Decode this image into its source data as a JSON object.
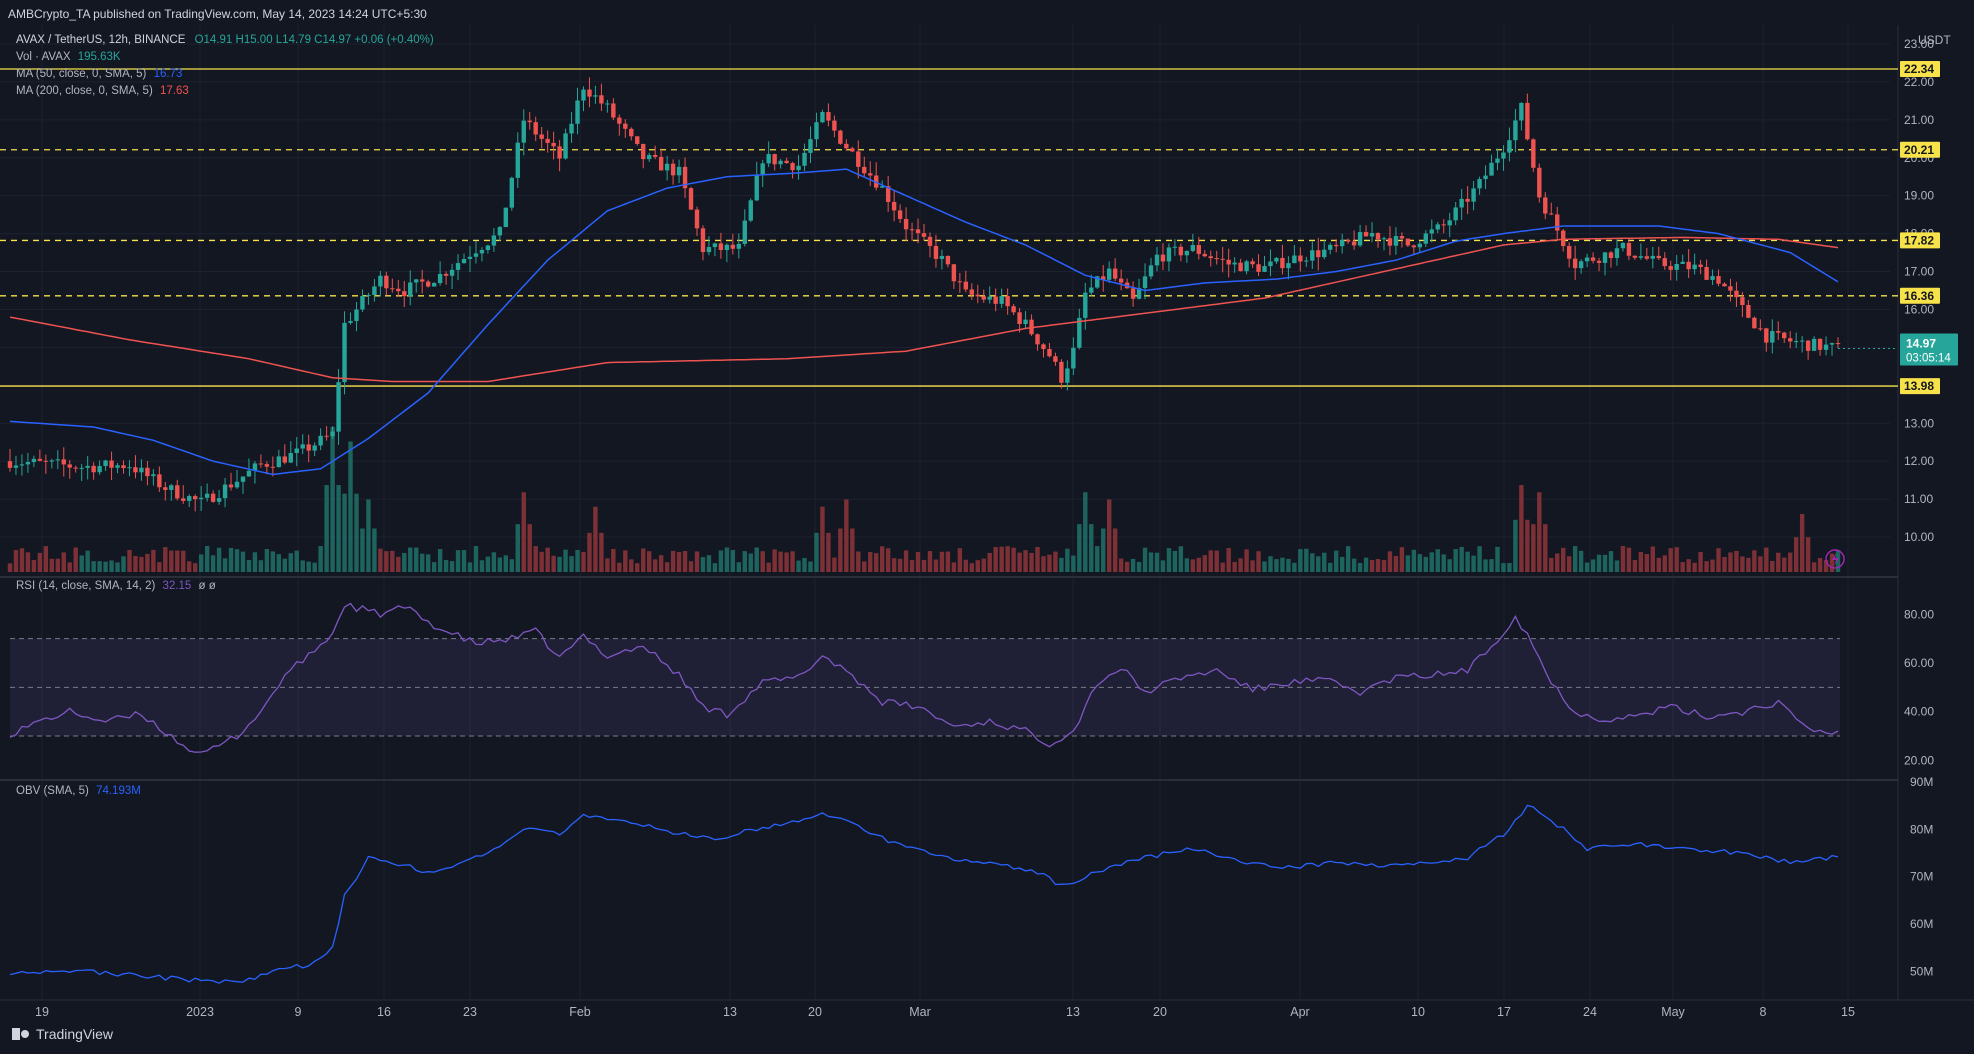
{
  "header": {
    "publisher": "AMBCrypto_TA published on TradingView.com, May 14, 2023 14:24 UTC+5:30"
  },
  "legend": {
    "symbol": "AVAX / TetherUS, 12h, BINANCE",
    "ohlc": "O14.91 H15.00 L14.79 C14.97 +0.06 (+0.40%)",
    "vol_label": "Vol · AVAX",
    "vol_value": "195.63K",
    "ma50_label": "MA (50, close, 0, SMA, 5)",
    "ma50_value": "16.73",
    "ma200_label": "MA (200, close, 0, SMA, 5)",
    "ma200_value": "17.63",
    "rsi_label": "RSI (14, close, SMA, 14, 2)",
    "rsi_value": "32.15",
    "rsi_extra": "ø ø",
    "obv_label": "OBV (SMA, 5)",
    "obv_value": "74.193M"
  },
  "footer": {
    "brand": "TradingView"
  },
  "colors": {
    "bg": "#131722",
    "up": "#26a69a",
    "down": "#ef5350",
    "ma50": "#2962ff",
    "ma200": "#ef5350",
    "rsi": "#7e57c2",
    "obv": "#2962ff",
    "level": "#f7e24a"
  },
  "chart_data": {
    "type": "candlestick",
    "currency": "USDT",
    "price_axis": {
      "ticks": [
        "10.00",
        "11.00",
        "12.00",
        "13.00",
        "14.00",
        "15.00",
        "16.00",
        "17.00",
        "18.00",
        "19.00",
        "20.00",
        "21.00",
        "22.00",
        "23.00"
      ],
      "range": [
        9.5,
        23.5
      ]
    },
    "x_axis": {
      "ticks": [
        "19",
        "2023",
        "9",
        "16",
        "23",
        "Feb",
        "13",
        "20",
        "Mar",
        "13",
        "20",
        "Apr",
        "10",
        "17",
        "24",
        "May",
        "8",
        "15"
      ]
    },
    "horizontal_levels": [
      {
        "value": 22.34,
        "label": "22.34",
        "style": "solid"
      },
      {
        "value": 20.21,
        "label": "20.21",
        "style": "dashed"
      },
      {
        "value": 17.82,
        "label": "17.82",
        "style": "dashed"
      },
      {
        "value": 16.36,
        "label": "16.36",
        "style": "dashed"
      },
      {
        "value": 13.98,
        "label": "13.98",
        "style": "solid"
      }
    ],
    "last_price": {
      "value": 14.97,
      "label": "14.97",
      "countdown": "03:05:14"
    },
    "close_path": [
      [
        0,
        12.0
      ],
      [
        12,
        11.85
      ],
      [
        20,
        11.9
      ],
      [
        26,
        11.3
      ],
      [
        32,
        10.9
      ],
      [
        36,
        11.3
      ],
      [
        42,
        11.9
      ],
      [
        48,
        12.2
      ],
      [
        54,
        12.7
      ],
      [
        56,
        15.6
      ],
      [
        62,
        16.8
      ],
      [
        66,
        16.5
      ],
      [
        72,
        16.9
      ],
      [
        78,
        17.6
      ],
      [
        82,
        18.0
      ],
      [
        86,
        21.0
      ],
      [
        92,
        20.0
      ],
      [
        96,
        21.9
      ],
      [
        100,
        21.3
      ],
      [
        106,
        20.0
      ],
      [
        112,
        19.6
      ],
      [
        116,
        17.6
      ],
      [
        122,
        17.6
      ],
      [
        126,
        20.0
      ],
      [
        132,
        19.8
      ],
      [
        136,
        21.1
      ],
      [
        140,
        20.3
      ],
      [
        146,
        19.2
      ],
      [
        150,
        18.2
      ],
      [
        156,
        17.3
      ],
      [
        160,
        16.4
      ],
      [
        166,
        16.2
      ],
      [
        170,
        15.6
      ],
      [
        174,
        14.8
      ],
      [
        176,
        14.2
      ],
      [
        178,
        14.9
      ],
      [
        180,
        16.4
      ],
      [
        184,
        17.0
      ],
      [
        188,
        16.2
      ],
      [
        192,
        17.4
      ],
      [
        198,
        17.6
      ],
      [
        204,
        17.2
      ],
      [
        210,
        17.1
      ],
      [
        216,
        17.4
      ],
      [
        222,
        17.6
      ],
      [
        228,
        18.0
      ],
      [
        234,
        17.7
      ],
      [
        240,
        18.2
      ],
      [
        246,
        19.3
      ],
      [
        250,
        20.3
      ],
      [
        253,
        21.3
      ],
      [
        256,
        19.0
      ],
      [
        262,
        17.2
      ],
      [
        270,
        17.6
      ],
      [
        276,
        17.2
      ],
      [
        282,
        17.1
      ],
      [
        286,
        16.8
      ],
      [
        290,
        16.0
      ],
      [
        294,
        15.3
      ],
      [
        300,
        15.1
      ],
      [
        306,
        14.97
      ]
    ],
    "ma50_path": [
      [
        0,
        13.05
      ],
      [
        14,
        12.9
      ],
      [
        24,
        12.55
      ],
      [
        34,
        12.0
      ],
      [
        44,
        11.65
      ],
      [
        52,
        11.8
      ],
      [
        60,
        12.6
      ],
      [
        70,
        13.8
      ],
      [
        80,
        15.6
      ],
      [
        90,
        17.3
      ],
      [
        100,
        18.6
      ],
      [
        110,
        19.2
      ],
      [
        120,
        19.5
      ],
      [
        132,
        19.6
      ],
      [
        140,
        19.7
      ],
      [
        150,
        19.0
      ],
      [
        160,
        18.3
      ],
      [
        170,
        17.7
      ],
      [
        180,
        16.9
      ],
      [
        190,
        16.5
      ],
      [
        200,
        16.7
      ],
      [
        212,
        16.8
      ],
      [
        222,
        17.0
      ],
      [
        232,
        17.3
      ],
      [
        242,
        17.8
      ],
      [
        250,
        18.0
      ],
      [
        260,
        18.2
      ],
      [
        276,
        18.2
      ],
      [
        286,
        18.0
      ],
      [
        298,
        17.5
      ],
      [
        306,
        16.73
      ]
    ],
    "ma200_path": [
      [
        0,
        15.8
      ],
      [
        20,
        15.2
      ],
      [
        40,
        14.7
      ],
      [
        54,
        14.2
      ],
      [
        64,
        14.1
      ],
      [
        80,
        14.1
      ],
      [
        100,
        14.6
      ],
      [
        130,
        14.7
      ],
      [
        150,
        14.9
      ],
      [
        170,
        15.5
      ],
      [
        190,
        15.9
      ],
      [
        210,
        16.3
      ],
      [
        230,
        17.0
      ],
      [
        250,
        17.7
      ],
      [
        260,
        17.85
      ],
      [
        280,
        17.9
      ],
      [
        296,
        17.85
      ],
      [
        306,
        17.63
      ]
    ],
    "volume": {
      "scale": "relative",
      "peak_bars": [
        [
          54,
          1.0
        ],
        [
          57,
          0.9
        ],
        [
          60,
          0.5
        ],
        [
          86,
          0.55
        ],
        [
          98,
          0.45
        ],
        [
          136,
          0.45
        ],
        [
          140,
          0.5
        ],
        [
          180,
          0.55
        ],
        [
          184,
          0.5
        ],
        [
          253,
          0.6
        ],
        [
          256,
          0.55
        ],
        [
          300,
          0.4
        ]
      ]
    },
    "rsi": {
      "axis_ticks": [
        "20.00",
        "40.00",
        "60.00",
        "80.00"
      ],
      "range": [
        14,
        90
      ],
      "band": [
        30,
        70
      ],
      "midline": 50,
      "path": [
        [
          0,
          31
        ],
        [
          6,
          37
        ],
        [
          10,
          40
        ],
        [
          16,
          36
        ],
        [
          22,
          39
        ],
        [
          28,
          28
        ],
        [
          32,
          22
        ],
        [
          38,
          30
        ],
        [
          42,
          40
        ],
        [
          46,
          55
        ],
        [
          50,
          63
        ],
        [
          54,
          72
        ],
        [
          56,
          84
        ],
        [
          62,
          80
        ],
        [
          66,
          83
        ],
        [
          72,
          74
        ],
        [
          78,
          68
        ],
        [
          84,
          70
        ],
        [
          88,
          73
        ],
        [
          92,
          62
        ],
        [
          96,
          71
        ],
        [
          100,
          63
        ],
        [
          106,
          67
        ],
        [
          112,
          55
        ],
        [
          116,
          42
        ],
        [
          120,
          39
        ],
        [
          126,
          52
        ],
        [
          132,
          54
        ],
        [
          136,
          63
        ],
        [
          140,
          57
        ],
        [
          146,
          44
        ],
        [
          152,
          42
        ],
        [
          158,
          34
        ],
        [
          164,
          36
        ],
        [
          170,
          32
        ],
        [
          174,
          27
        ],
        [
          178,
          32
        ],
        [
          182,
          52
        ],
        [
          186,
          58
        ],
        [
          190,
          48
        ],
        [
          196,
          54
        ],
        [
          202,
          57
        ],
        [
          208,
          49
        ],
        [
          214,
          52
        ],
        [
          220,
          53
        ],
        [
          226,
          48
        ],
        [
          232,
          54
        ],
        [
          238,
          55
        ],
        [
          244,
          57
        ],
        [
          248,
          67
        ],
        [
          252,
          79
        ],
        [
          254,
          72
        ],
        [
          258,
          52
        ],
        [
          262,
          40
        ],
        [
          266,
          37
        ],
        [
          272,
          38
        ],
        [
          278,
          42
        ],
        [
          284,
          38
        ],
        [
          290,
          40
        ],
        [
          296,
          44
        ],
        [
          300,
          34
        ],
        [
          304,
          31
        ],
        [
          306,
          32.15
        ]
      ]
    },
    "obv": {
      "axis_ticks": [
        "50M",
        "60M",
        "70M",
        "80M",
        "90M"
      ],
      "range": [
        45,
        90
      ],
      "path": [
        [
          0,
          49.8
        ],
        [
          10,
          50.2
        ],
        [
          20,
          49.2
        ],
        [
          30,
          48.2
        ],
        [
          38,
          47.8
        ],
        [
          44,
          49.8
        ],
        [
          50,
          51.5
        ],
        [
          54,
          55
        ],
        [
          56,
          66
        ],
        [
          60,
          74
        ],
        [
          64,
          73
        ],
        [
          70,
          71
        ],
        [
          76,
          73
        ],
        [
          82,
          76
        ],
        [
          86,
          80
        ],
        [
          92,
          79
        ],
        [
          96,
          83
        ],
        [
          100,
          82
        ],
        [
          106,
          81
        ],
        [
          112,
          79
        ],
        [
          118,
          78
        ],
        [
          124,
          80
        ],
        [
          130,
          81
        ],
        [
          136,
          83.5
        ],
        [
          140,
          82
        ],
        [
          148,
          77
        ],
        [
          156,
          74
        ],
        [
          164,
          73
        ],
        [
          172,
          71
        ],
        [
          176,
          68
        ],
        [
          182,
          71
        ],
        [
          190,
          74
        ],
        [
          198,
          76
        ],
        [
          206,
          73
        ],
        [
          214,
          72
        ],
        [
          222,
          73
        ],
        [
          230,
          72
        ],
        [
          238,
          73
        ],
        [
          244,
          74
        ],
        [
          250,
          79
        ],
        [
          254,
          85
        ],
        [
          258,
          82
        ],
        [
          264,
          76
        ],
        [
          272,
          77
        ],
        [
          280,
          76
        ],
        [
          290,
          75
        ],
        [
          298,
          73
        ],
        [
          306,
          74.193
        ]
      ]
    }
  }
}
